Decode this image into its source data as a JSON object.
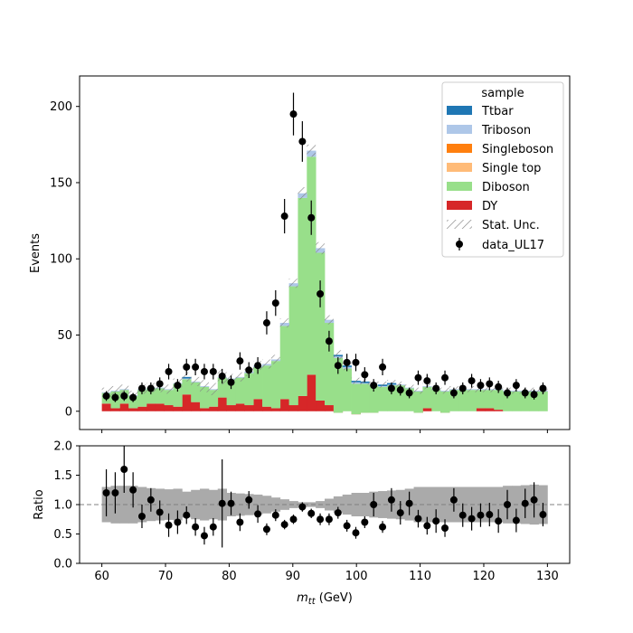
{
  "chart_data": [
    {
      "panel": "main",
      "type": "bar",
      "stacked": true,
      "ylabel": "Events",
      "xlim": [
        56.5,
        133.5
      ],
      "ylim": [
        -12,
        220
      ],
      "xticks": [
        60,
        70,
        80,
        90,
        100,
        110,
        120,
        130
      ],
      "yticks": [
        0,
        50,
        100,
        150,
        200
      ],
      "bin_edges": [
        60,
        61.4,
        62.8,
        64.2,
        65.6,
        67.0,
        68.4,
        69.8,
        71.2,
        72.6,
        74.0,
        75.4,
        76.8,
        78.2,
        79.6,
        81.0,
        82.4,
        83.8,
        85.2,
        86.6,
        88.0,
        89.4,
        90.8,
        92.2,
        93.6,
        95.0,
        96.4,
        97.8,
        99.2,
        100.6,
        102.0,
        103.4,
        104.8,
        106.2,
        107.6,
        109.0,
        110.4,
        111.8,
        113.2,
        114.6,
        116.0,
        117.4,
        118.8,
        120.2,
        121.6,
        123.0,
        124.4,
        125.8,
        127.2,
        128.6,
        130.0
      ],
      "legend": {
        "title": "sample",
        "placement": "top-right",
        "entries": [
          "Ttbar",
          "Triboson",
          "Singleboson",
          "Single top",
          "Diboson",
          "DY",
          "Stat. Unc.",
          "data_UL17"
        ]
      },
      "series": [
        {
          "name": "DY",
          "color": "#d62728",
          "values": [
            5,
            2,
            5,
            2,
            3,
            5,
            5,
            4,
            3,
            11,
            6,
            2,
            3,
            9,
            4,
            5,
            4,
            8,
            3,
            2,
            8,
            4,
            10,
            24,
            7,
            4,
            -1,
            0,
            -2,
            -1,
            -1,
            0,
            0,
            0,
            0,
            -1,
            2,
            0,
            -1,
            0,
            0,
            0,
            2,
            2,
            1,
            0,
            0,
            0,
            0,
            0
          ]
        },
        {
          "name": "Diboson",
          "color": "#98df8a",
          "values": [
            7,
            11,
            9,
            8,
            11,
            10,
            10,
            10,
            15,
            10,
            13,
            14,
            11,
            13,
            17,
            17,
            21,
            21,
            27,
            31,
            48,
            78,
            130,
            143,
            97,
            54,
            36,
            28,
            20,
            19,
            18,
            16,
            17,
            17,
            15,
            14,
            14,
            14,
            14,
            14,
            14,
            14,
            12,
            12,
            13,
            13,
            13,
            13,
            13,
            13
          ]
        },
        {
          "name": "Single top",
          "color": "#ffbb78",
          "values": [
            0,
            0,
            0,
            0,
            0,
            0,
            0,
            0,
            0,
            0,
            0,
            0,
            0,
            0,
            0,
            0,
            0,
            0,
            0,
            0,
            0,
            0,
            0,
            0,
            0,
            0,
            0,
            0,
            0,
            0,
            0,
            0,
            0,
            0,
            0,
            0,
            0,
            0,
            0,
            0,
            0,
            0,
            0,
            0,
            0,
            0,
            0,
            0,
            0,
            0
          ]
        },
        {
          "name": "Singleboson",
          "color": "#ff7f0e",
          "values": [
            0,
            0,
            0,
            0,
            0,
            0,
            0,
            0,
            0,
            0,
            0,
            0,
            0,
            0,
            0,
            0,
            0,
            0,
            0,
            0,
            0,
            0,
            0,
            0,
            0,
            0,
            0,
            0,
            0,
            0,
            0,
            0,
            0,
            0,
            0,
            0,
            0,
            0,
            0,
            0,
            0,
            0,
            0,
            0,
            0,
            0,
            0,
            0,
            0,
            0
          ]
        },
        {
          "name": "Triboson",
          "color": "#aec7e8",
          "values": [
            0.5,
            0.5,
            0.5,
            0.5,
            0.5,
            0.5,
            0.5,
            0.5,
            0.5,
            0.5,
            0.5,
            0.5,
            0.5,
            0.5,
            0.5,
            0.5,
            1,
            1,
            1,
            1,
            2,
            2,
            3,
            4,
            3,
            2,
            1,
            1,
            1,
            0.5,
            0.5,
            0.5,
            0.5,
            0.5,
            0.5,
            0.5,
            0.5,
            0.5,
            0.5,
            0.5,
            0.5,
            0.5,
            0.5,
            0.5,
            0.5,
            0.5,
            0.5,
            0.5,
            0.5,
            0.5
          ]
        },
        {
          "name": "Ttbar",
          "color": "#1f77b4",
          "values": [
            0,
            0,
            0,
            0,
            0,
            0,
            0,
            0,
            0,
            1,
            0,
            0,
            0,
            0,
            0,
            0,
            0,
            0,
            0,
            0,
            0,
            0,
            0,
            0,
            0,
            0,
            1,
            1,
            1,
            1,
            0,
            1,
            1,
            0,
            0,
            0,
            0,
            0,
            0,
            0,
            0,
            0,
            0,
            0,
            0,
            0,
            0,
            0,
            0,
            0
          ]
        }
      ],
      "stat_unc": [
        3,
        3,
        3,
        3,
        3,
        3,
        3,
        3,
        3,
        3,
        3,
        4,
        4,
        5,
        3,
        3,
        3,
        3,
        3,
        3,
        3,
        3,
        4,
        4,
        4,
        3,
        3,
        3,
        2,
        2,
        2,
        2,
        2,
        2,
        2,
        2,
        2,
        2,
        2,
        2,
        2,
        2,
        2,
        2,
        2,
        2,
        2,
        2,
        2,
        2
      ],
      "data": {
        "name": "data_UL17",
        "x": [
          60.7,
          62.1,
          63.5,
          64.9,
          66.3,
          67.7,
          69.1,
          70.5,
          71.9,
          73.3,
          74.7,
          76.1,
          77.5,
          78.9,
          80.3,
          81.7,
          83.1,
          84.5,
          85.9,
          87.3,
          88.7,
          90.1,
          91.5,
          92.9,
          94.3,
          95.7,
          97.1,
          98.5,
          99.9,
          101.3,
          102.7,
          104.1,
          105.5,
          106.9,
          108.3,
          109.7,
          111.1,
          112.5,
          113.9,
          115.3,
          116.7,
          118.1,
          119.5,
          120.9,
          122.3,
          123.7,
          125.1,
          126.5,
          127.9,
          129.3
        ],
        "y": [
          10,
          9,
          10,
          9,
          15,
          15,
          18,
          26,
          17,
          29,
          29,
          26,
          26,
          23,
          19,
          33,
          27,
          30,
          58,
          71,
          128,
          195,
          177,
          127,
          77,
          46,
          30,
          32,
          32,
          24,
          17,
          29,
          15,
          14,
          12,
          22,
          20,
          15,
          22,
          12,
          15,
          20,
          17,
          18,
          16,
          12,
          17,
          12,
          11,
          15
        ],
        "yerr": [
          3.2,
          3,
          3.2,
          3,
          3.9,
          3.9,
          4.2,
          5.1,
          4.1,
          5.4,
          5.4,
          5.1,
          5.1,
          4.8,
          4.4,
          5.7,
          5.2,
          5.5,
          7.6,
          8.4,
          11.3,
          14,
          13.3,
          11.3,
          8.8,
          6.8,
          5.5,
          5.7,
          5.7,
          4.9,
          4.1,
          5.4,
          3.9,
          3.7,
          3.5,
          4.7,
          4.5,
          3.9,
          4.7,
          3.5,
          3.9,
          4.5,
          4.1,
          4.2,
          4,
          3.5,
          4.1,
          3.5,
          3.3,
          3.9
        ]
      }
    },
    {
      "panel": "ratio",
      "type": "scatter",
      "xlabel": "m_tt (GeV)",
      "ylabel": "Ratio",
      "xlim": [
        56.5,
        133.5
      ],
      "ylim": [
        0,
        2
      ],
      "yticks": [
        "0.0",
        "0.5",
        "1.0",
        "1.5",
        "2.0"
      ],
      "reference_line": 1.0,
      "unc_band": [
        0.3,
        0.32,
        0.32,
        0.32,
        0.3,
        0.28,
        0.27,
        0.26,
        0.27,
        0.22,
        0.25,
        0.27,
        0.25,
        0.27,
        0.2,
        0.19,
        0.18,
        0.17,
        0.15,
        0.12,
        0.09,
        0.06,
        0.04,
        0.04,
        0.06,
        0.1,
        0.14,
        0.17,
        0.2,
        0.2,
        0.22,
        0.23,
        0.24,
        0.25,
        0.27,
        0.3,
        0.3,
        0.3,
        0.3,
        0.3,
        0.3,
        0.3,
        0.3,
        0.3,
        0.3,
        0.32,
        0.32,
        0.33,
        0.34,
        0.33
      ],
      "ratio": [
        1.2,
        1.2,
        1.6,
        1.25,
        0.8,
        1.08,
        0.87,
        0.65,
        0.7,
        0.82,
        0.62,
        0.47,
        0.62,
        1.02,
        1.02,
        0.7,
        1.08,
        0.84,
        0.58,
        0.82,
        0.66,
        0.75,
        0.96,
        0.85,
        0.75,
        0.75,
        0.86,
        0.64,
        0.52,
        0.7,
        1.0,
        0.62,
        1.08,
        0.86,
        1.02,
        0.76,
        0.64,
        0.72,
        0.6,
        1.08,
        0.82,
        0.76,
        0.82,
        0.83,
        0.72,
        1.0,
        0.73,
        1.02,
        1.08,
        0.83
      ],
      "ratio_err": [
        0.4,
        0.35,
        0.4,
        0.3,
        0.2,
        0.2,
        0.2,
        0.2,
        0.2,
        0.15,
        0.15,
        0.15,
        0.15,
        0.75,
        0.2,
        0.15,
        0.15,
        0.15,
        0.1,
        0.1,
        0.08,
        0.08,
        0.08,
        0.08,
        0.1,
        0.1,
        0.1,
        0.1,
        0.1,
        0.1,
        0.2,
        0.1,
        0.2,
        0.2,
        0.2,
        0.15,
        0.15,
        0.2,
        0.15,
        0.2,
        0.2,
        0.2,
        0.2,
        0.2,
        0.2,
        0.25,
        0.2,
        0.25,
        0.3,
        0.2
      ]
    }
  ],
  "labels": {
    "main_ylabel": "Events",
    "ratio_ylabel": "Ratio",
    "xlabel_var": "m",
    "xlabel_sub": "tt",
    "xlabel_unit": " (GeV)",
    "legend_title": "sample",
    "legend_ttbar": "Ttbar",
    "legend_triboson": "Triboson",
    "legend_singleboson": "Singleboson",
    "legend_singletop": "Single top",
    "legend_diboson": "Diboson",
    "legend_dy": "DY",
    "legend_statunc": "Stat. Unc.",
    "legend_data": "data_UL17"
  }
}
